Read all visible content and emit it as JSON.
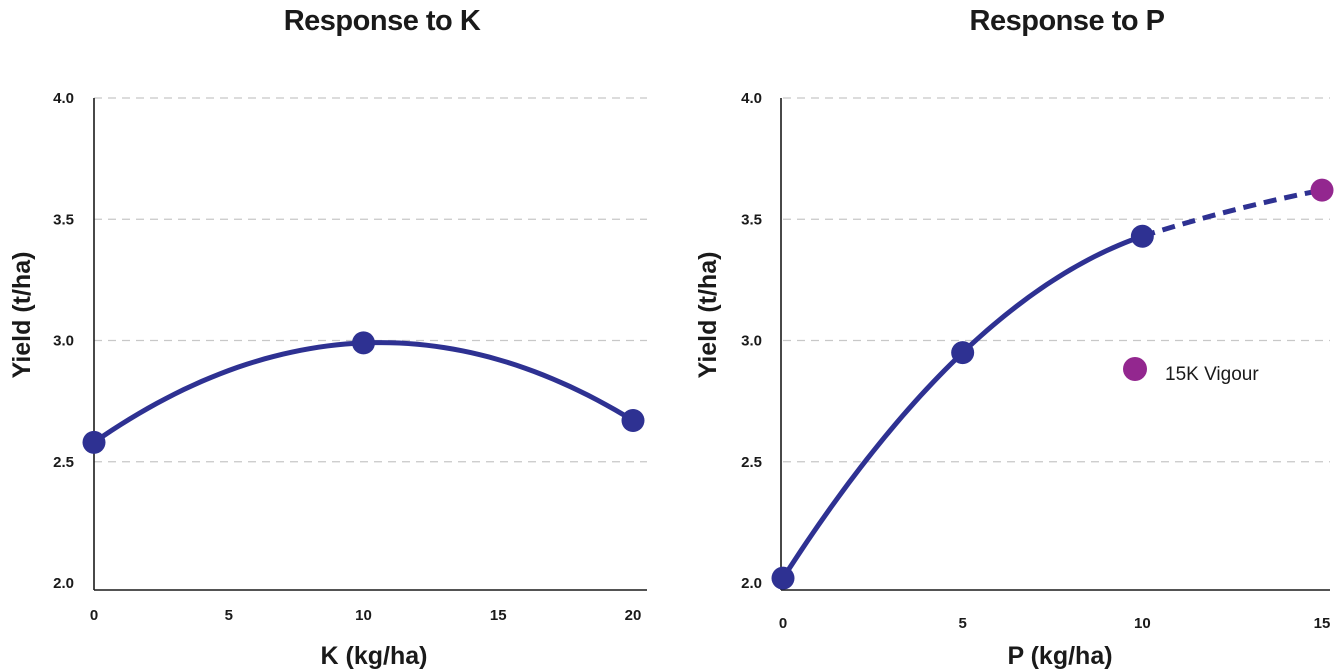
{
  "colors": {
    "series": "#2e3192",
    "highlight": "#93278f",
    "grid": "#c8c8c8",
    "text": "#1a1a1a"
  },
  "chart_data": [
    {
      "type": "line",
      "title": "Response to K",
      "xlabel": "K (kg/ha)",
      "ylabel": "Yield (t/ha)",
      "xlim": [
        0,
        20
      ],
      "ylim": [
        2.0,
        4.0
      ],
      "xticks": [
        "0",
        "5",
        "10",
        "15",
        "20"
      ],
      "yticks": [
        "2.0",
        "2.5",
        "3.0",
        "3.5",
        "4.0"
      ],
      "grid": "horizontal dashed",
      "series": [
        {
          "x": [
            0,
            10,
            20
          ],
          "y": [
            2.58,
            2.99,
            2.67
          ],
          "curve": "quadratic",
          "style": "solid"
        }
      ]
    },
    {
      "type": "line",
      "title": "Response to P",
      "xlabel": "P (kg/ha)",
      "ylabel": "Yield (t/ha)",
      "xlim": [
        0,
        15
      ],
      "ylim": [
        2.0,
        4.0
      ],
      "xticks": [
        "0",
        "5",
        "10",
        "15"
      ],
      "yticks": [
        "2.0",
        "2.5",
        "3.0",
        "3.5",
        "4.0"
      ],
      "grid": "horizontal dashed",
      "series": [
        {
          "x": [
            0,
            5,
            10
          ],
          "y": [
            2.02,
            2.95,
            3.43
          ],
          "curve": "quadratic",
          "style": "solid"
        }
      ],
      "extrapolation": {
        "x": [
          10,
          15
        ],
        "y": [
          3.43,
          3.62
        ],
        "style": "dashed"
      },
      "highlight_point": {
        "x": 15,
        "y": 3.62,
        "name": "15K Vigour"
      },
      "legend": {
        "label": "15K Vigour",
        "placement": "center-right"
      }
    }
  ]
}
